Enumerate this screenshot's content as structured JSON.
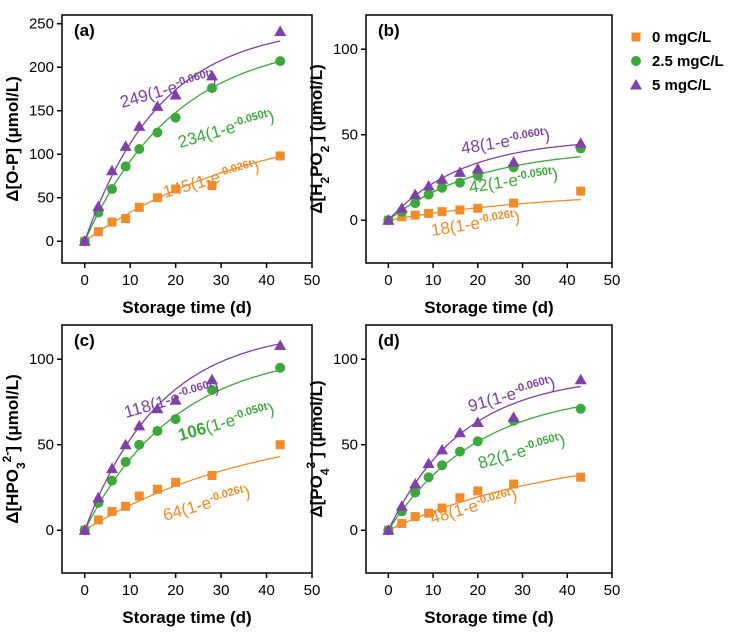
{
  "colors": {
    "0": "#f28c2b",
    "2.5": "#3ca83c",
    "5": "#8040a8"
  },
  "legend": [
    {
      "label": "0 mgC/L",
      "marker": "square",
      "color": "#f28c2b"
    },
    {
      "label": "2.5 mgC/L",
      "marker": "circle",
      "color": "#3ca83c"
    },
    {
      "label": "5 mgC/L",
      "marker": "triangle",
      "color": "#8040a8"
    }
  ],
  "chart_data": [
    {
      "type": "scatter",
      "panel_label": "(a)",
      "xlabel": "Storage time (d)",
      "ylabel_parts": [
        {
          "t": "Δ[O-P] (μmol/L)"
        }
      ],
      "xlim": [
        -5,
        50
      ],
      "ylim": [
        -25,
        260
      ],
      "xticks": [
        0,
        10,
        20,
        30,
        40,
        50
      ],
      "yticks": [
        0,
        50,
        100,
        150,
        200,
        250
      ],
      "x": [
        0,
        3,
        6,
        9,
        12,
        16,
        20,
        28,
        43
      ],
      "series": [
        {
          "key": "0",
          "marker": "square",
          "values": [
            0,
            11,
            22,
            26,
            39,
            50,
            60,
            64,
            98
          ],
          "fit": {
            "a": 145,
            "k": 0.026
          },
          "fit_label": {
            "pre": "145(1-e",
            "exp": "-0.026t",
            "post": ")",
            "bold_pre": false
          }
        },
        {
          "key": "2.5",
          "marker": "circle",
          "values": [
            0,
            33,
            60,
            86,
            106,
            125,
            142,
            176,
            207
          ],
          "fit": {
            "a": 234,
            "k": 0.05
          },
          "fit_label": {
            "pre": "234(1-e",
            "exp": "-0.050t",
            "post": ")",
            "bold_pre": false
          }
        },
        {
          "key": "5",
          "marker": "triangle",
          "values": [
            0,
            40,
            81,
            109,
            132,
            155,
            168,
            190,
            241
          ],
          "fit": {
            "a": 249,
            "k": 0.06
          },
          "fit_label": {
            "pre": "249(1-e",
            "exp": "-0.060t",
            "post": ")",
            "bold_pre": false
          }
        }
      ]
    },
    {
      "type": "scatter",
      "panel_label": "(b)",
      "xlabel": "Storage time (d)",
      "ylabel_parts": [
        {
          "t": "Δ[H"
        },
        {
          "t": "2",
          "sub": true
        },
        {
          "t": "PO"
        },
        {
          "t": "2",
          "sub": true
        },
        {
          "t": "-",
          "sup": true
        },
        {
          "t": "] (μmol/L)"
        }
      ],
      "xlim": [
        -5,
        50
      ],
      "ylim": [
        -25,
        120
      ],
      "xticks": [
        0,
        10,
        20,
        30,
        40,
        50
      ],
      "yticks": [
        0,
        50,
        100
      ],
      "x": [
        0,
        3,
        6,
        9,
        12,
        16,
        20,
        28,
        43
      ],
      "series": [
        {
          "key": "0",
          "marker": "square",
          "values": [
            0,
            2,
            3,
            4,
            5,
            6,
            7,
            10,
            17
          ],
          "fit": {
            "a": 18,
            "k": 0.026
          },
          "fit_label": {
            "pre": "18(1-e",
            "exp": "-0.026t",
            "post": ")",
            "bold_pre": false
          }
        },
        {
          "key": "2.5",
          "marker": "circle",
          "values": [
            0,
            5,
            10,
            15,
            19,
            22,
            26,
            31,
            42
          ],
          "fit": {
            "a": 42,
            "k": 0.05
          },
          "fit_label": {
            "pre": "42(1-e",
            "exp": "-0.050t",
            "post": ")",
            "bold_pre": false
          }
        },
        {
          "key": "5",
          "marker": "triangle",
          "values": [
            0,
            7,
            15,
            20,
            24,
            28,
            30,
            34,
            45
          ],
          "fit": {
            "a": 48,
            "k": 0.06
          },
          "fit_label": {
            "pre": "48(1-e",
            "exp": "-0.060t",
            "post": ")",
            "bold_pre": false
          }
        }
      ]
    },
    {
      "type": "scatter",
      "panel_label": "(c)",
      "xlabel": "Storage time (d)",
      "ylabel_parts": [
        {
          "t": "Δ[HPO"
        },
        {
          "t": "3",
          "sub": true
        },
        {
          "t": "2-",
          "sup": true
        },
        {
          "t": "] (μmol/L)"
        }
      ],
      "xlim": [
        -5,
        50
      ],
      "ylim": [
        -25,
        120
      ],
      "xticks": [
        0,
        10,
        20,
        30,
        40,
        50
      ],
      "yticks": [
        0,
        50,
        100
      ],
      "x": [
        0,
        3,
        6,
        9,
        12,
        16,
        20,
        28,
        43
      ],
      "series": [
        {
          "key": "0",
          "marker": "square",
          "values": [
            0,
            6,
            11,
            14,
            20,
            24,
            28,
            32,
            50
          ],
          "fit": {
            "a": 64,
            "k": 0.026
          },
          "fit_label": {
            "pre": "64(1-e",
            "exp": "-0.026t",
            "post": ")",
            "bold_pre": false
          }
        },
        {
          "key": "2.5",
          "marker": "circle",
          "values": [
            0,
            16,
            29,
            40,
            50,
            58,
            65,
            82,
            95
          ],
          "fit": {
            "a": 106,
            "k": 0.05
          },
          "fit_label": {
            "pre": "106",
            "exp": "-0.050t",
            "post": ")",
            "bold_pre": true,
            "mid": "(1-e"
          }
        },
        {
          "key": "5",
          "marker": "triangle",
          "values": [
            0,
            19,
            36,
            50,
            61,
            71,
            76,
            88,
            108
          ],
          "fit": {
            "a": 118,
            "k": 0.06
          },
          "fit_label": {
            "pre": "118(1-e",
            "exp": "-0.060t",
            "post": ")",
            "bold_pre": false
          }
        }
      ]
    },
    {
      "type": "scatter",
      "panel_label": "(d)",
      "xlabel": "Storage time (d)",
      "ylabel_parts": [
        {
          "t": "Δ[PO"
        },
        {
          "t": "4",
          "sub": true
        },
        {
          "t": "3-",
          "sup": true
        },
        {
          "t": "] (μmol/L)"
        }
      ],
      "xlim": [
        -5,
        50
      ],
      "ylim": [
        -25,
        120
      ],
      "xticks": [
        0,
        10,
        20,
        30,
        40,
        50
      ],
      "yticks": [
        0,
        50,
        100
      ],
      "x": [
        0,
        3,
        6,
        9,
        12,
        16,
        20,
        28,
        43
      ],
      "series": [
        {
          "key": "0",
          "marker": "square",
          "values": [
            0,
            4,
            8,
            10,
            13,
            19,
            23,
            27,
            31
          ],
          "fit": {
            "a": 48,
            "k": 0.026
          },
          "fit_label": {
            "pre": "48(1-e",
            "exp": "-0.026t",
            "post": ")",
            "bold_pre": false
          }
        },
        {
          "key": "2.5",
          "marker": "circle",
          "values": [
            0,
            11,
            22,
            31,
            38,
            46,
            52,
            64,
            71
          ],
          "fit": {
            "a": 82,
            "k": 0.05
          },
          "fit_label": {
            "pre": "82(1-e",
            "exp": "-0.050t",
            "post": ")",
            "bold_pre": false
          }
        },
        {
          "key": "5",
          "marker": "triangle",
          "values": [
            0,
            14,
            27,
            39,
            47,
            57,
            63,
            66,
            88
          ],
          "fit": {
            "a": 91,
            "k": 0.06
          },
          "fit_label": {
            "pre": "91(1-e",
            "exp": "-0.060t",
            "post": ")",
            "bold_pre": false
          }
        }
      ]
    }
  ]
}
